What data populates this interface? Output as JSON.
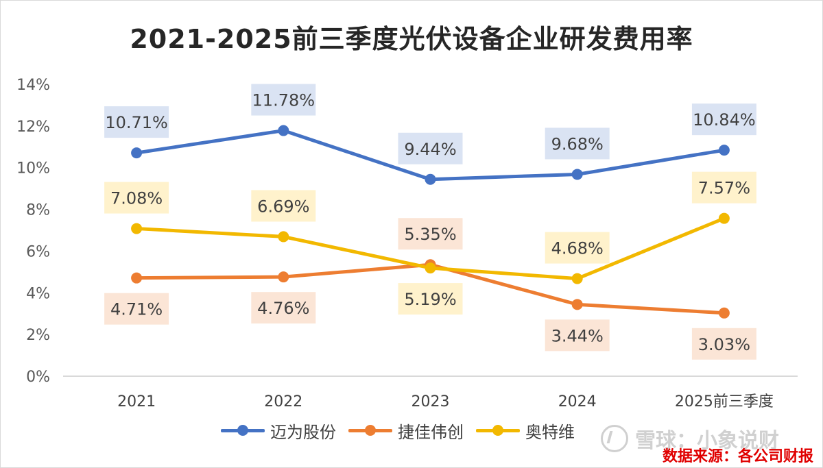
{
  "chart_data": {
    "type": "line",
    "title": "2021-2025前三季度光伏设备企业研发费用率",
    "categories": [
      "2021",
      "2022",
      "2023",
      "2024",
      "2025前三季度"
    ],
    "ylim": [
      0,
      14
    ],
    "yticks": [
      0,
      2,
      4,
      6,
      8,
      10,
      12,
      14
    ],
    "ytick_labels": [
      "0%",
      "2%",
      "4%",
      "6%",
      "8%",
      "10%",
      "12%",
      "14%"
    ],
    "grid": false,
    "legend_position": "bottom",
    "series": [
      {
        "name": "迈为股份",
        "color": "#4472c4",
        "label_bg": "#dae3f3",
        "values": [
          10.71,
          11.78,
          9.44,
          9.68,
          10.84
        ],
        "labels": [
          "10.71%",
          "11.78%",
          "9.44%",
          "9.68%",
          "10.84%"
        ],
        "label_pos": [
          "above",
          "above",
          "above",
          "above",
          "above"
        ]
      },
      {
        "name": "捷佳伟创",
        "color": "#ed7d31",
        "label_bg": "#fbe5d6",
        "values": [
          4.71,
          4.76,
          5.35,
          3.44,
          3.03
        ],
        "labels": [
          "4.71%",
          "4.76%",
          "5.35%",
          "3.44%",
          "3.03%"
        ],
        "label_pos": [
          "below",
          "below",
          "above",
          "below",
          "below"
        ]
      },
      {
        "name": "奥特维",
        "color": "#f2b800",
        "label_bg": "#fff2cc",
        "values": [
          7.08,
          6.69,
          5.19,
          4.68,
          7.57
        ],
        "labels": [
          "7.08%",
          "6.69%",
          "5.19%",
          "4.68%",
          "7.57%"
        ],
        "label_pos": [
          "above",
          "above",
          "below",
          "above",
          "above"
        ]
      }
    ]
  },
  "watermark": "雪球：小象说财",
  "source": "数据来源：各公司财报"
}
